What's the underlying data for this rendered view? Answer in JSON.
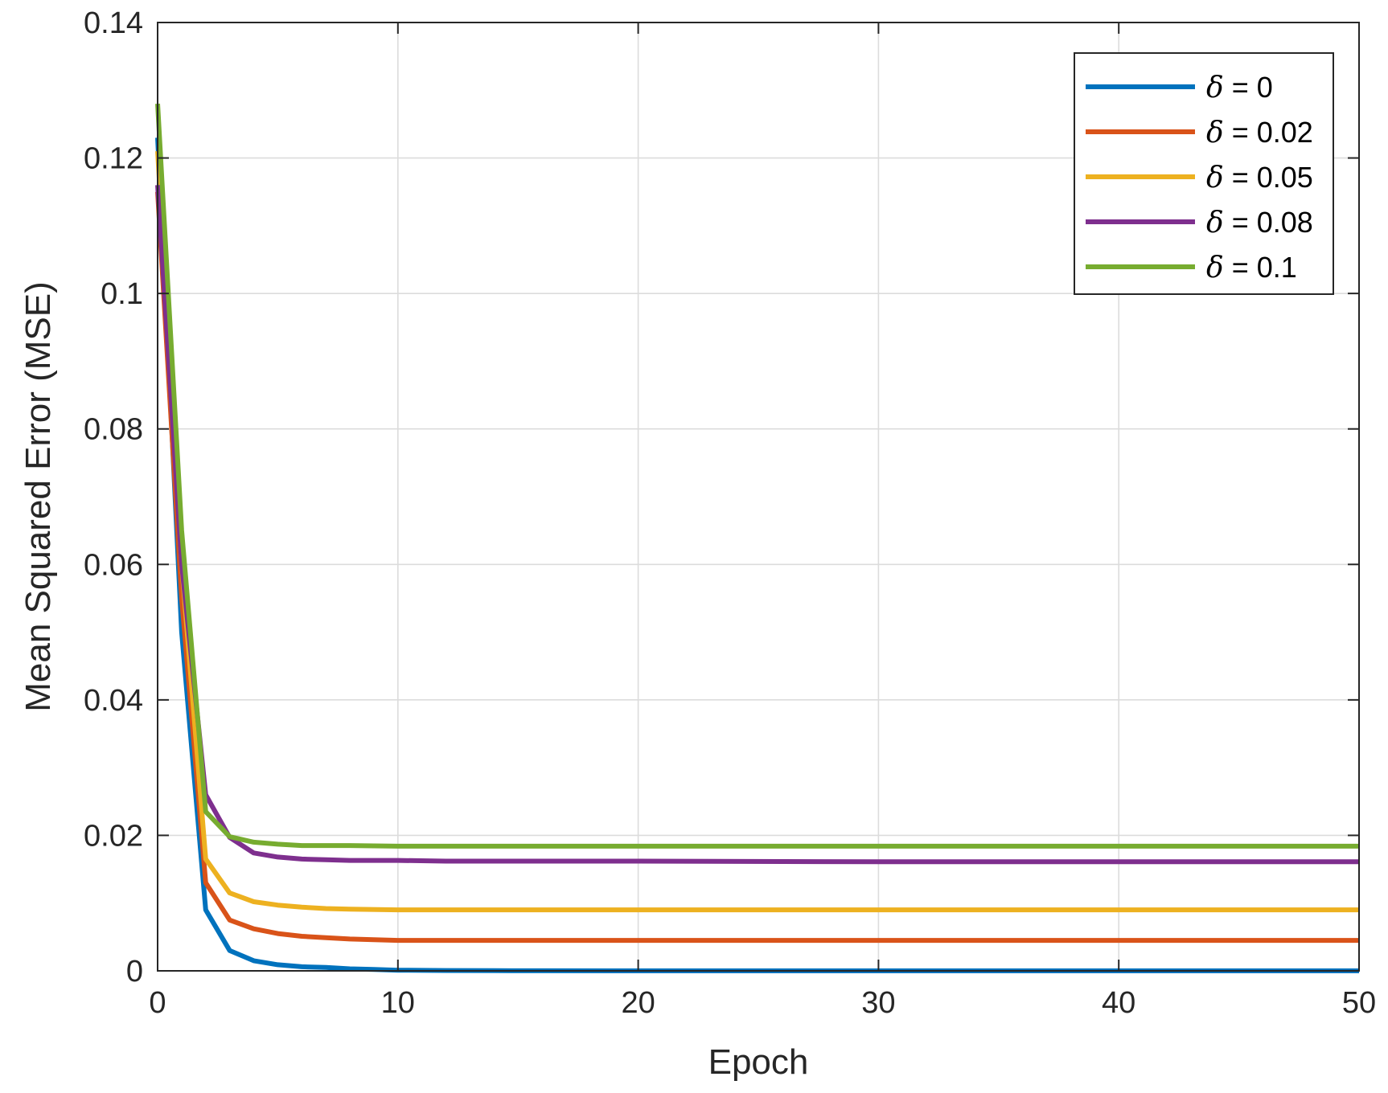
{
  "chart_data": {
    "type": "line",
    "xlabel": "Epoch",
    "ylabel": "Mean Squared Error (MSE)",
    "xlim": [
      0,
      50
    ],
    "ylim": [
      0,
      0.14
    ],
    "xticks": [
      0,
      10,
      20,
      30,
      40,
      50
    ],
    "xtick_labels": [
      "0",
      "10",
      "20",
      "30",
      "40",
      "50"
    ],
    "yticks": [
      0,
      0.02,
      0.04,
      0.06,
      0.08,
      0.1,
      0.12,
      0.14
    ],
    "ytick_labels": [
      "0",
      "0.02",
      "0.04",
      "0.06",
      "0.08",
      "0.1",
      "0.12",
      "0.14"
    ],
    "grid": true,
    "legend_position": "top-right",
    "series": [
      {
        "name": "δ = 0",
        "legend_symbol": "δ",
        "legend_value": " = 0",
        "color": "#0072BD",
        "x": [
          0,
          1,
          2,
          3,
          4,
          5,
          6,
          7,
          8,
          9,
          10,
          12,
          14,
          16,
          20,
          30,
          40,
          50
        ],
        "y": [
          0.123,
          0.05,
          0.009,
          0.003,
          0.0015,
          0.0009,
          0.0006,
          0.0005,
          0.0003,
          0.0002,
          0.0001,
          5e-05,
          2e-05,
          1e-05,
          0.0,
          0.0,
          0.0,
          0.0
        ]
      },
      {
        "name": "δ = 0.02",
        "legend_symbol": "δ",
        "legend_value": " = 0.02",
        "color": "#D95319",
        "x": [
          0,
          1,
          2,
          3,
          4,
          5,
          6,
          7,
          8,
          9,
          10,
          12,
          15,
          20,
          30,
          40,
          50
        ],
        "y": [
          0.115,
          0.055,
          0.013,
          0.0075,
          0.0062,
          0.0055,
          0.0051,
          0.0049,
          0.0047,
          0.0046,
          0.0045,
          0.0045,
          0.0045,
          0.0045,
          0.0045,
          0.0045,
          0.0045
        ]
      },
      {
        "name": "δ = 0.05",
        "legend_symbol": "δ",
        "legend_value": " = 0.05",
        "color": "#EDB120",
        "x": [
          0,
          1,
          2,
          3,
          4,
          5,
          6,
          7,
          8,
          10,
          12,
          15,
          20,
          30,
          40,
          50
        ],
        "y": [
          0.121,
          0.06,
          0.0165,
          0.0115,
          0.0102,
          0.0097,
          0.0094,
          0.0092,
          0.0091,
          0.009,
          0.009,
          0.009,
          0.009,
          0.009,
          0.009,
          0.009
        ]
      },
      {
        "name": "δ = 0.08",
        "legend_symbol": "δ",
        "legend_value": " = 0.08",
        "color": "#7E2F8E",
        "x": [
          0,
          1,
          2,
          3,
          4,
          5,
          6,
          7,
          8,
          10,
          12,
          15,
          20,
          30,
          40,
          50
        ],
        "y": [
          0.116,
          0.06,
          0.026,
          0.0197,
          0.0174,
          0.0168,
          0.0165,
          0.0164,
          0.0163,
          0.0163,
          0.0162,
          0.0162,
          0.0162,
          0.0161,
          0.0161,
          0.0161
        ]
      },
      {
        "name": "δ = 0.1",
        "legend_symbol": "δ",
        "legend_value": " = 0.1",
        "color": "#77AC30",
        "x": [
          0,
          1,
          2,
          3,
          4,
          5,
          6,
          7,
          8,
          10,
          12,
          15,
          20,
          30,
          40,
          50
        ],
        "y": [
          0.128,
          0.065,
          0.0235,
          0.0198,
          0.019,
          0.0187,
          0.0185,
          0.0185,
          0.0185,
          0.0184,
          0.0184,
          0.0184,
          0.0184,
          0.0184,
          0.0184,
          0.0184
        ]
      }
    ]
  }
}
